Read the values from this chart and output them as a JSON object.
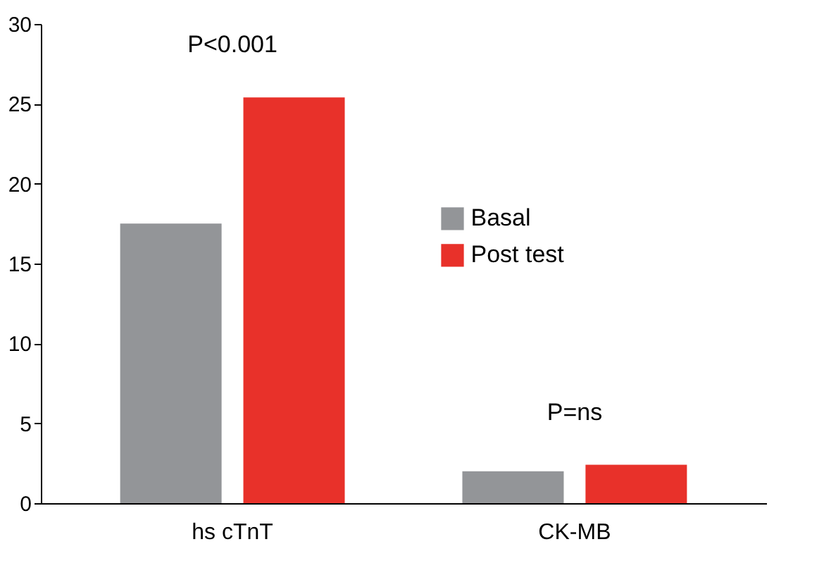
{
  "chart_data": {
    "type": "bar",
    "categories": [
      "hs cTnT",
      "CK-MB"
    ],
    "series": [
      {
        "name": "Basal",
        "color": "#939598",
        "values": [
          17.5,
          2.0
        ]
      },
      {
        "name": "Post test",
        "color": "#e8312a",
        "values": [
          25.4,
          2.4
        ]
      }
    ],
    "ylim": [
      0,
      30
    ],
    "yticks": [
      0,
      5,
      10,
      15,
      20,
      25,
      30
    ],
    "grid": false,
    "legend": "right",
    "annotations": [
      "P<0.001",
      "P=ns"
    ]
  }
}
